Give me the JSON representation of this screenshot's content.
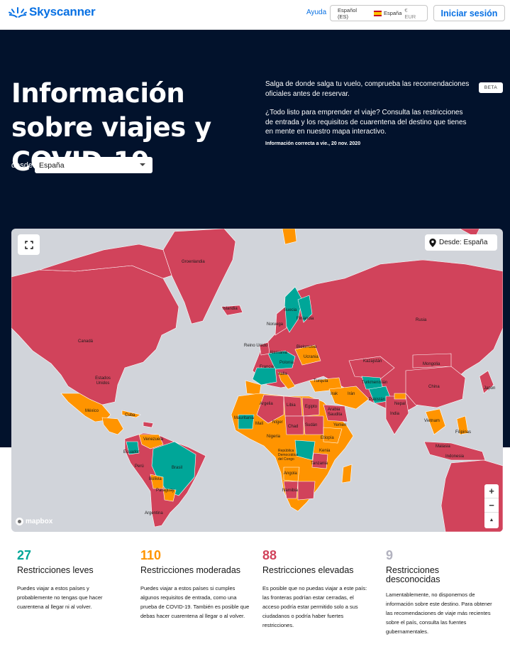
{
  "header": {
    "brand": "Skyscanner",
    "help": "Ayuda",
    "language": "Español (ES)",
    "country": "España",
    "currency": "€ EUR",
    "signin": "Iniciar sesión"
  },
  "hero": {
    "title": "Información sobre viajes y COVID-19",
    "from_label": "desde",
    "from_value": "España",
    "intro": "Salga de donde salga tu vuelo, comprueba las recomendaciones oficiales antes de reservar.",
    "intro2": "¿Todo listo para emprender el viaje? Consulta las restricciones de entrada y los requisitos de cuarentena del destino que tienes en mente en nuestro mapa interactivo.",
    "updated": "Información correcta a vie., 20 nov. 2020",
    "beta": "BETA"
  },
  "map": {
    "origin_chip": "Desde: España",
    "attribution": "mapbox",
    "zoom_in": "+",
    "zoom_out": "−",
    "compass": "▲",
    "colors": {
      "leves": "#00a698",
      "moderadas": "#ff9400",
      "elevadas": "#d1435b",
      "desconocidas": "#b2b2bf",
      "water": "#d1d4da"
    },
    "labels": {
      "groenlandia": "Groenlandia",
      "islandia": "Islandia",
      "canada": "Canadá",
      "eeuu": "Estados Unidos",
      "mexico": "México",
      "cuba": "Cuba",
      "venezuela": "Venezuela",
      "ecuador": "Ecuador",
      "peru": "Perú",
      "brasil": "Brasil",
      "bolivia": "Bolivia",
      "paraguay": "Paraguay",
      "argentina": "Argentina",
      "suecia": "Suecia",
      "noruega": "Noruega",
      "finlandia": "Finlandia",
      "reino_unido": "Reino Unido",
      "alemania": "Alemania",
      "polonia": "Polonia",
      "bielorrusia": "Bielorrusia",
      "ucrania": "Ucrania",
      "francia": "Francia",
      "italia": "Italia",
      "turquia": "Turquía",
      "rusia": "Rusia",
      "kazajstan": "Kazajstán",
      "mongolia": "Mongolia",
      "china": "China",
      "japon": "Japón",
      "india": "India",
      "pakistan": "Pakistán",
      "iran": "Irán",
      "irak": "Irak",
      "arabia": "Arabia Saudita",
      "argelia": "Argelia",
      "libia": "Libia",
      "egipto": "Egipto",
      "mali": "Malí",
      "niger": "Níger",
      "chad": "Chad",
      "sudan": "Sudán",
      "etiopia": "Etiopía",
      "kenia": "Kenia",
      "angola": "Angola",
      "namibia": "Namibia",
      "mauritania": "Mauritania",
      "nigeria": "Nigeria",
      "congo": "República Democrática del Congo",
      "indonesia": "Indonesia",
      "filipinas": "Filipinas",
      "turkmenistan": "Turkmenistán",
      "nepal": "Nepal",
      "vietnam": "Vietnam",
      "tanzania": "Tanzania",
      "yemen": "Yemen",
      "malasia": "Malasia"
    }
  },
  "stats": [
    {
      "count": "27",
      "title": "Restricciones leves",
      "desc": "Puedes viajar a estos países y probablemente no tengas que hacer cuarentena al llegar ni al volver.",
      "color": "#00a698"
    },
    {
      "count": "110",
      "title": "Restricciones moderadas",
      "desc": "Puedes viajar a estos países si cumples algunos requisitos de entrada, como una prueba de COVID-19. También es posible que debas hacer cuarentena al llegar o al volver.",
      "color": "#ff9400"
    },
    {
      "count": "88",
      "title": "Restricciones elevadas",
      "desc": "Es posible que no puedas viajar a este país: las fronteras podrían estar cerradas, el acceso podría estar permitido solo a sus ciudadanos o podría haber fuertes restricciones.",
      "color": "#d1435b"
    },
    {
      "count": "9",
      "title": "Restricciones desconocidas",
      "desc": "Lamentablemente, no disponemos de información sobre este destino. Para obtener las recomendaciones de viaje más recientes sobre el país, consulta las fuentes gubernamentales.",
      "color": "#b2b2bf"
    }
  ]
}
